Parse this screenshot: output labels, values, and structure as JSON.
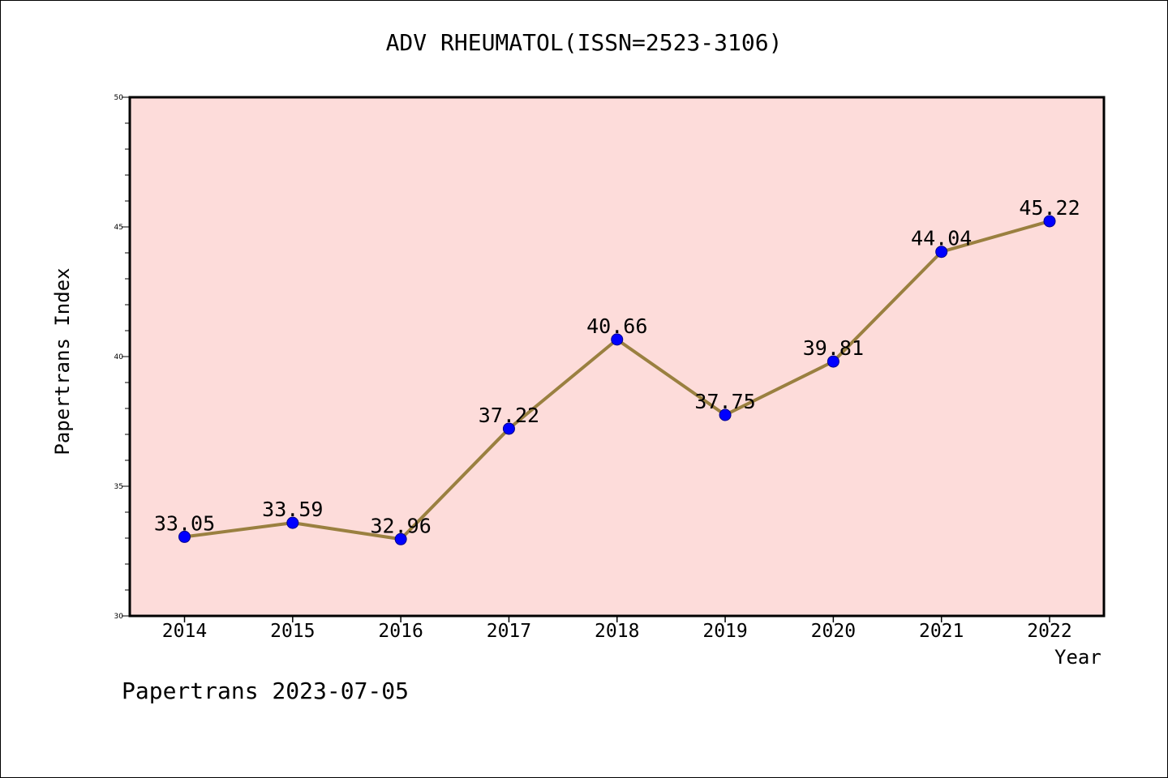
{
  "chart_data": {
    "type": "line",
    "title": "ADV RHEUMATOL(ISSN=2523-3106)",
    "xlabel": "Year",
    "ylabel": "Papertrans Index",
    "categories": [
      "2014",
      "2015",
      "2016",
      "2017",
      "2018",
      "2019",
      "2020",
      "2021",
      "2022"
    ],
    "series": [
      {
        "values": [
          33.05,
          33.59,
          32.96,
          37.22,
          40.66,
          37.75,
          39.81,
          44.04,
          45.22
        ],
        "data_labels": [
          "33.05",
          "33.59",
          "32.96",
          "37.22",
          "40.66",
          "37.75",
          "39.81",
          "44.04",
          "45.22"
        ]
      }
    ],
    "ylim": [
      30,
      50
    ],
    "y_ticks": [
      "30",
      "35",
      "40",
      "45",
      "50"
    ],
    "grid": false,
    "legend": "none",
    "colors": {
      "plot_background": "#FDDCDA",
      "line": "#9A8040",
      "marker": "#0000FF",
      "marker_edge": "#00008B",
      "axes": "#000000"
    }
  },
  "footer": {
    "note": "Papertrans 2023-07-05"
  }
}
